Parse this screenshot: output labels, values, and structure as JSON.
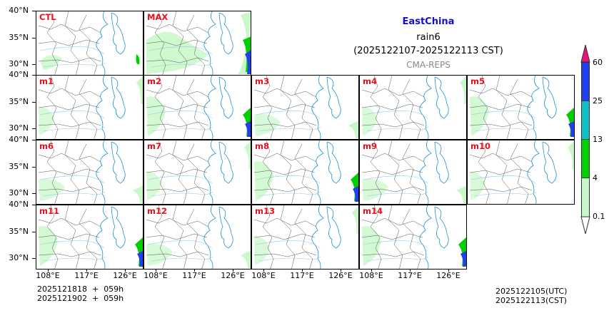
{
  "title": {
    "region": "EastChina",
    "variable": "rain6",
    "period": "(2025122107-2025122113 CST)",
    "model": "CMA-REPS"
  },
  "panels": [
    {
      "label": "CTL",
      "row": 0,
      "col": 0
    },
    {
      "label": "MAX",
      "row": 0,
      "col": 1
    },
    {
      "label": "m1",
      "row": 1,
      "col": 0
    },
    {
      "label": "m2",
      "row": 1,
      "col": 1
    },
    {
      "label": "m3",
      "row": 1,
      "col": 2
    },
    {
      "label": "m4",
      "row": 1,
      "col": 3
    },
    {
      "label": "m5",
      "row": 1,
      "col": 4
    },
    {
      "label": "m6",
      "row": 2,
      "col": 0
    },
    {
      "label": "m7",
      "row": 2,
      "col": 1
    },
    {
      "label": "m8",
      "row": 2,
      "col": 2
    },
    {
      "label": "m9",
      "row": 2,
      "col": 3
    },
    {
      "label": "m10",
      "row": 2,
      "col": 4
    },
    {
      "label": "m11",
      "row": 3,
      "col": 0
    },
    {
      "label": "m12",
      "row": 3,
      "col": 1
    },
    {
      "label": "m13",
      "row": 3,
      "col": 2
    },
    {
      "label": "m14",
      "row": 3,
      "col": 3
    }
  ],
  "axes": {
    "lat_ticks": [
      "40°N",
      "35°N",
      "30°N"
    ],
    "lon_ticks": [
      "108°E",
      "117°E",
      "126°E"
    ]
  },
  "colorbar": {
    "levels": [
      "60",
      "25",
      "13",
      "4",
      "0.1"
    ],
    "colors": {
      "over": "#e6147a",
      "c60": "#2040f0",
      "c25": "#10c0c0",
      "c13": "#00d000",
      "c4": "#c8f8c8",
      "under": "#ffffff"
    }
  },
  "footer": {
    "init_line1": "2025121818  +  059h",
    "init_line2": "2025121902  +  059h",
    "valid_utc": "2025122105(UTC)",
    "valid_cst": "2025122113(CST)"
  }
}
